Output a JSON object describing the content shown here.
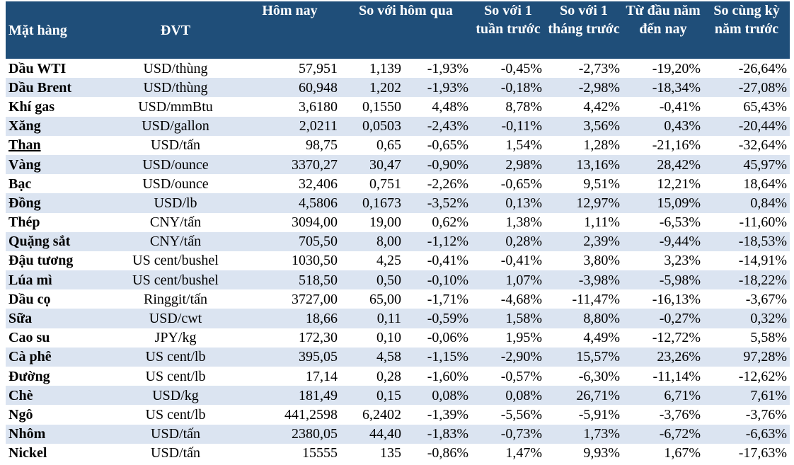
{
  "header": {
    "item": "Mặt hàng",
    "unit": "ĐVT",
    "today": "Hôm nay",
    "vs_yesterday": "So với hôm qua",
    "vs_week": "So với 1 tuần trước",
    "vs_month": "So với 1 tháng trước",
    "ytd": "Từ đầu năm đến nay",
    "yoy": "So cùng kỳ năm trước"
  },
  "rows": [
    {
      "name": "Dầu WTI",
      "unit": "USD/thùng",
      "today": "57,951",
      "chg": "1,139",
      "chg_pct": "-1,93%",
      "week": "-0,45%",
      "month": "-2,73%",
      "ytd": "-19,20%",
      "yoy": "-26,64%"
    },
    {
      "name": "Dầu Brent",
      "unit": "USD/thùng",
      "today": "60,948",
      "chg": "1,202",
      "chg_pct": "-1,93%",
      "week": "-0,18%",
      "month": "-2,98%",
      "ytd": "-18,34%",
      "yoy": "-27,08%"
    },
    {
      "name": "Khí gas",
      "unit": "USD/mmBtu",
      "today": "3,6180",
      "chg": "0,1550",
      "chg_pct": "4,48%",
      "week": "8,78%",
      "month": "4,42%",
      "ytd": "-0,41%",
      "yoy": "65,43%"
    },
    {
      "name": "Xăng",
      "unit": "USD/gallon",
      "today": "2,0211",
      "chg": "0,0503",
      "chg_pct": "-2,43%",
      "week": "-0,11%",
      "month": "3,56%",
      "ytd": "0,43%",
      "yoy": "-20,44%"
    },
    {
      "name": "Than",
      "unit": "USD/tấn",
      "today": "98,75",
      "chg": "0,65",
      "chg_pct": "-0,65%",
      "week": "1,54%",
      "month": "1,28%",
      "ytd": "-21,16%",
      "yoy": "-32,64%"
    },
    {
      "name": "Vàng",
      "unit": "USD/ounce",
      "today": "3370,27",
      "chg": "30,47",
      "chg_pct": "-0,90%",
      "week": "2,98%",
      "month": "13,16%",
      "ytd": "28,42%",
      "yoy": "45,97%"
    },
    {
      "name": "Bạc",
      "unit": "USD/ounce",
      "today": "32,406",
      "chg": "0,751",
      "chg_pct": "-2,26%",
      "week": "-0,65%",
      "month": "9,51%",
      "ytd": "12,21%",
      "yoy": "18,64%"
    },
    {
      "name": "Đồng",
      "unit": "USD/lb",
      "today": "4,5806",
      "chg": "0,1673",
      "chg_pct": "-3,52%",
      "week": "0,13%",
      "month": "12,97%",
      "ytd": "15,09%",
      "yoy": "0,84%"
    },
    {
      "name": "Thép",
      "unit": "CNY/tấn",
      "today": "3094,00",
      "chg": "19,00",
      "chg_pct": "0,62%",
      "week": "1,38%",
      "month": "1,11%",
      "ytd": "-6,53%",
      "yoy": "-11,60%"
    },
    {
      "name": "Quặng sắt",
      "unit": "CNY/tấn",
      "today": "705,50",
      "chg": "8,00",
      "chg_pct": "-1,12%",
      "week": "0,28%",
      "month": "2,39%",
      "ytd": "-9,44%",
      "yoy": "-18,53%"
    },
    {
      "name": "Đậu tương",
      "unit": "US cent/bushel",
      "today": "1030,50",
      "chg": "4,25",
      "chg_pct": "-0,41%",
      "week": "-0,41%",
      "month": "3,80%",
      "ytd": "3,23%",
      "yoy": "-14,91%"
    },
    {
      "name": "Lúa mì",
      "unit": "US cent/bushel",
      "today": "518,50",
      "chg": "0,50",
      "chg_pct": "-0,10%",
      "week": "1,07%",
      "month": "-3,98%",
      "ytd": "-5,98%",
      "yoy": "-18,22%"
    },
    {
      "name": "Dầu cọ",
      "unit": "Ringgit/tấn",
      "today": "3727,00",
      "chg": "65,00",
      "chg_pct": "-1,71%",
      "week": "-4,68%",
      "month": "-11,47%",
      "ytd": "-16,13%",
      "yoy": "-3,67%"
    },
    {
      "name": "Sữa",
      "unit": "USD/cwt",
      "today": "18,66",
      "chg": "0,11",
      "chg_pct": "-0,59%",
      "week": "1,58%",
      "month": "8,80%",
      "ytd": "-0,27%",
      "yoy": "0,32%"
    },
    {
      "name": "Cao su",
      "unit": "JPY/kg",
      "today": "172,30",
      "chg": "0,10",
      "chg_pct": "-0,06%",
      "week": "1,95%",
      "month": "4,49%",
      "ytd": "-12,72%",
      "yoy": "5,58%"
    },
    {
      "name": "Cà phê",
      "unit": "US cent/lb",
      "today": "395,05",
      "chg": "4,58",
      "chg_pct": "-1,15%",
      "week": "-2,90%",
      "month": "15,57%",
      "ytd": "23,26%",
      "yoy": "97,28%"
    },
    {
      "name": "Đường",
      "unit": "US cent/lb",
      "today": "17,14",
      "chg": "0,28",
      "chg_pct": "-1,60%",
      "week": "-0,57%",
      "month": "-6,30%",
      "ytd": "-11,14%",
      "yoy": "-12,62%"
    },
    {
      "name": "Chè",
      "unit": "USD/kg",
      "today": "181,49",
      "chg": "0,15",
      "chg_pct": "0,08%",
      "week": "0,08%",
      "month": "26,71%",
      "ytd": "6,71%",
      "yoy": "7,61%"
    },
    {
      "name": "Ngô",
      "unit": "US cent/lb",
      "today": "441,2598",
      "chg": "6,2402",
      "chg_pct": "-1,39%",
      "week": "-5,56%",
      "month": "-5,91%",
      "ytd": "-3,76%",
      "yoy": "-3,76%"
    },
    {
      "name": "Nhôm",
      "unit": "USD/tấn",
      "today": "2380,05",
      "chg": "44,40",
      "chg_pct": "-1,83%",
      "week": "-0,73%",
      "month": "1,73%",
      "ytd": "-6,72%",
      "yoy": "-6,63%"
    },
    {
      "name": "Nickel",
      "unit": "USD/tấn",
      "today": "15555",
      "chg": "135",
      "chg_pct": "-0,86%",
      "week": "1,47%",
      "month": "9,93%",
      "ytd": "1,67%",
      "yoy": "-17,63%"
    }
  ]
}
